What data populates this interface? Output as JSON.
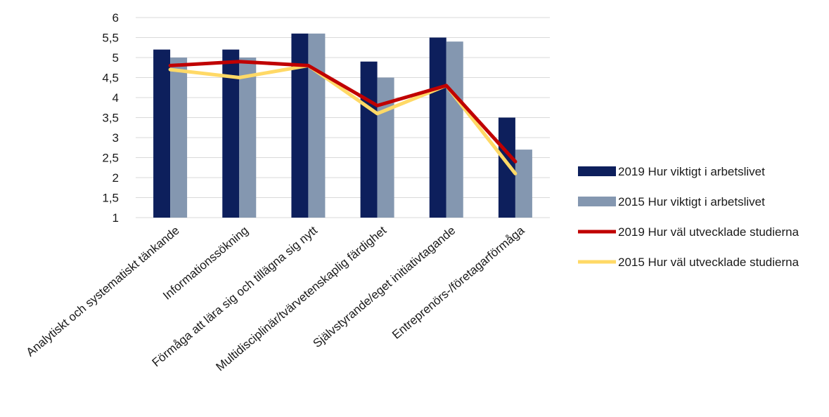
{
  "chart_data": {
    "type": "bar",
    "categories": [
      "Analytiskt och systematiskt tänkande",
      "Informationssökning",
      "Förmåga att lära sig och tillägna sig nytt",
      "Multidisciplinär/tvärvetenskaplig färdighet",
      "Självstyrande/eget initiativtagande",
      "Entreprenörs-/företagarförmåga"
    ],
    "series": [
      {
        "name": "2019 Hur viktigt i arbetslivet",
        "kind": "bar",
        "color": "#0d1f5c",
        "values": [
          5.2,
          5.2,
          5.6,
          4.9,
          5.5,
          3.5
        ]
      },
      {
        "name": "2015 Hur viktigt i arbetslivet",
        "kind": "bar",
        "color": "#8497b0",
        "values": [
          5.0,
          5.0,
          5.6,
          4.5,
          5.4,
          2.7
        ]
      },
      {
        "name": "2019 Hur väl utvecklade studierna",
        "kind": "line",
        "color": "#c00000",
        "values": [
          4.8,
          4.9,
          4.8,
          3.8,
          4.3,
          2.4
        ]
      },
      {
        "name": "2015 Hur väl utvecklade studierna",
        "kind": "line",
        "color": "#ffd966",
        "values": [
          4.7,
          4.5,
          4.8,
          3.6,
          4.3,
          2.1
        ]
      }
    ],
    "y_ticks": [
      "1",
      "1,5",
      "2",
      "2,5",
      "3",
      "3,5",
      "4",
      "4,5",
      "5",
      "5,5",
      "6"
    ],
    "ylim": [
      1,
      6
    ],
    "grid": true,
    "legend_position": "right",
    "category_label_rotation": "diagonal"
  }
}
